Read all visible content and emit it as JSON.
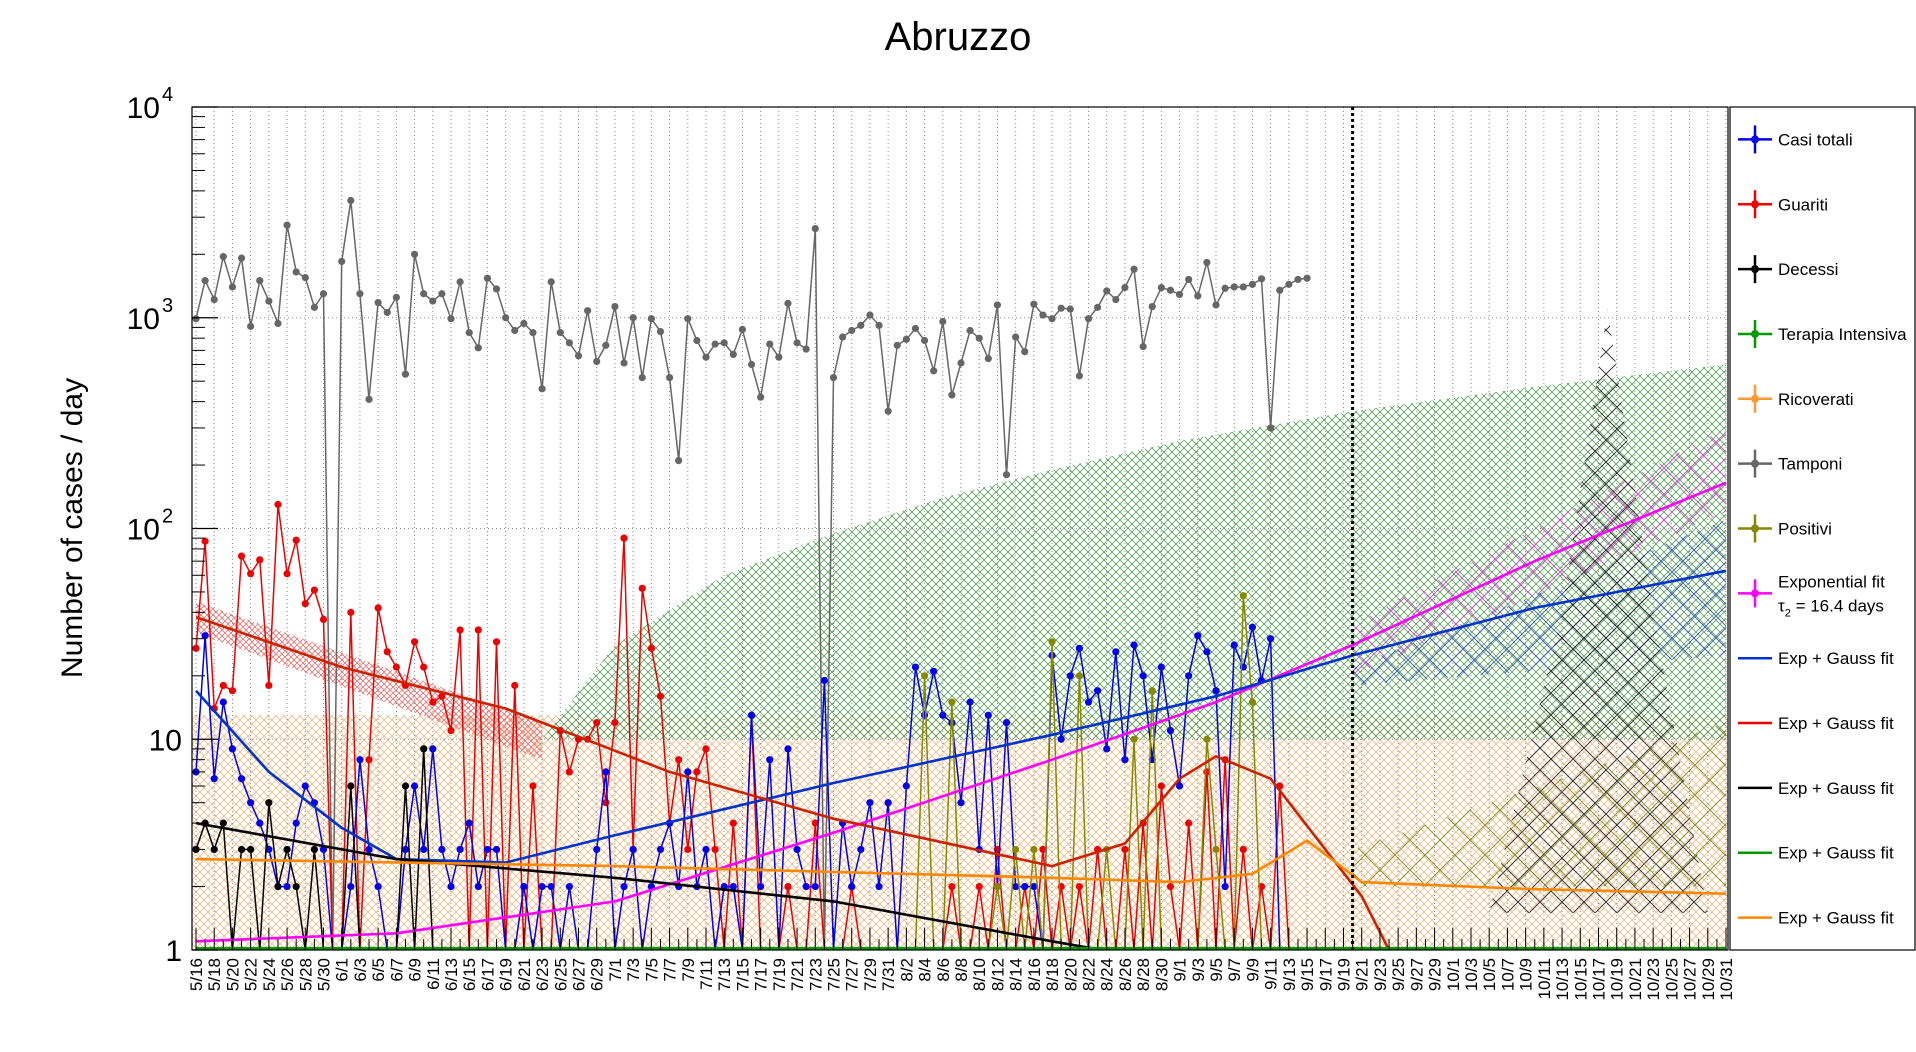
{
  "chart_data": {
    "type": "line",
    "title": "Abruzzo",
    "xlabel": "",
    "ylabel": "Number of cases / day",
    "y_scale": "log",
    "ylim": [
      1,
      10000
    ],
    "y_tick_labels": [
      {
        "value": 1,
        "base": "1",
        "exp": ""
      },
      {
        "value": 10,
        "base": "10",
        "exp": ""
      },
      {
        "value": 100,
        "base": "10",
        "exp": "2"
      },
      {
        "value": 1000,
        "base": "10",
        "exp": "3"
      },
      {
        "value": 10000,
        "base": "10",
        "exp": "4"
      }
    ],
    "x_tick_labels": [
      "5/16",
      "5/18",
      "5/20",
      "5/22",
      "5/24",
      "5/26",
      "5/28",
      "5/30",
      "6/1",
      "6/3",
      "6/5",
      "6/7",
      "6/9",
      "6/11",
      "6/13",
      "6/15",
      "6/17",
      "6/19",
      "6/21",
      "6/23",
      "6/25",
      "6/27",
      "6/29",
      "7/1",
      "7/3",
      "7/5",
      "7/7",
      "7/9",
      "7/11",
      "7/13",
      "7/15",
      "7/17",
      "7/19",
      "7/21",
      "7/23",
      "7/25",
      "7/27",
      "7/29",
      "7/31",
      "8/2",
      "8/4",
      "8/6",
      "8/8",
      "8/10",
      "8/12",
      "8/14",
      "8/16",
      "8/18",
      "8/20",
      "8/22",
      "8/24",
      "8/26",
      "8/28",
      "8/30",
      "9/1",
      "9/3",
      "9/5",
      "9/7",
      "9/9",
      "9/11",
      "9/13",
      "9/15",
      "9/17",
      "9/19",
      "9/21",
      "9/23",
      "9/25",
      "9/27",
      "9/29",
      "10/1",
      "10/3",
      "10/5",
      "10/7",
      "10/9",
      "10/11",
      "10/13",
      "10/15",
      "10/17",
      "10/19",
      "10/21",
      "10/23",
      "10/25",
      "10/27",
      "10/29",
      "10/31"
    ],
    "grid": true,
    "legend_position": "right",
    "vertical_marker": "9/20",
    "colors": {
      "casi_totali": "#0000ee",
      "guariti": "#ee0000",
      "decessi": "#000000",
      "terapia": "#009900",
      "ricoverati": "#ff9933",
      "tamponi": "#666666",
      "positivi": "#888800",
      "exp_fit": "#ff00ff"
    },
    "series": [
      {
        "name": "Tamponi",
        "color": "#666666",
        "values": [
          990,
          1500,
          1220,
          1950,
          1400,
          1920,
          910,
          1500,
          1200,
          940,
          2750,
          1650,
          1550,
          1120,
          1300,
          1,
          1850,
          3600,
          1300,
          410,
          1180,
          1060,
          1250,
          540,
          2000,
          1300,
          1200,
          1300,
          990,
          1480,
          850,
          720,
          1540,
          1370,
          1000,
          870,
          940,
          850,
          460,
          1480,
          850,
          760,
          660,
          1080,
          620,
          740,
          1130,
          610,
          1000,
          520,
          990,
          860,
          520,
          210,
          990,
          780,
          650,
          750,
          760,
          670,
          880,
          600,
          420,
          750,
          650,
          1170,
          760,
          710,
          2650,
          1,
          520,
          810,
          870,
          920,
          1030,
          920,
          360,
          740,
          790,
          890,
          780,
          560,
          960,
          430,
          610,
          870,
          800,
          640,
          1150,
          180,
          810,
          690,
          1160,
          1030,
          990,
          1110,
          1100,
          530,
          990,
          1120,
          1340,
          1220,
          1390,
          1700,
          730,
          1130,
          1390,
          1350,
          1290,
          1520,
          1270,
          1830,
          1150,
          1380,
          1400,
          1400,
          1440,
          1530,
          300,
          1350,
          1440,
          1520,
          1540
        ]
      },
      {
        "name": "Guariti",
        "color": "#ee0000",
        "values": [
          27,
          87,
          14,
          18,
          17,
          74,
          61,
          71,
          18,
          130,
          61,
          88,
          44,
          51,
          37,
          1,
          1,
          40,
          1,
          8,
          42,
          26,
          22,
          18,
          29,
          22,
          15,
          16,
          11,
          33,
          1,
          33,
          1,
          29,
          1,
          18,
          1,
          6,
          1,
          1,
          11,
          7,
          10,
          10,
          12,
          5,
          12,
          90,
          3,
          52,
          27,
          16,
          4,
          8,
          3,
          7,
          9,
          3,
          1,
          4,
          1,
          13,
          1,
          1,
          1,
          2,
          1,
          1,
          4,
          1,
          1,
          1,
          2,
          1,
          1,
          1,
          1,
          1,
          1,
          1,
          1,
          1,
          1,
          2,
          1,
          1,
          2,
          1,
          3,
          1,
          1,
          2,
          1,
          3,
          1,
          2,
          1,
          2,
          1,
          3,
          1,
          1,
          3,
          1,
          4,
          1,
          6,
          2,
          1,
          4,
          1,
          7,
          1,
          8,
          1,
          3,
          1,
          2,
          1,
          6,
          1
        ]
      },
      {
        "name": "Casi totali",
        "color": "#0000ee",
        "values": [
          7,
          31,
          6.5,
          15,
          9,
          6.5,
          5,
          4,
          3,
          2,
          2,
          4,
          6,
          5,
          3,
          1,
          1,
          2,
          8,
          3,
          2,
          1,
          1,
          3,
          6,
          3,
          9,
          3,
          2,
          3,
          4,
          2,
          3,
          3,
          1,
          1,
          2,
          1,
          2,
          2,
          1,
          2,
          1,
          1,
          3,
          7,
          1,
          2,
          3,
          1,
          2,
          3,
          4,
          2,
          7,
          2,
          3,
          1,
          2,
          2,
          1,
          13,
          2,
          8,
          1,
          9,
          3,
          2,
          2,
          19,
          1,
          4,
          2,
          3,
          5,
          2,
          5,
          1,
          6,
          22,
          13,
          21,
          13,
          12,
          5,
          15,
          3,
          13,
          2,
          12,
          2,
          2,
          2,
          1,
          25,
          10,
          20,
          27,
          15,
          17,
          9,
          26,
          8,
          28,
          20,
          8,
          22,
          11,
          6,
          20,
          31,
          26,
          17,
          2,
          28,
          22,
          34,
          19,
          30,
          1
        ]
      },
      {
        "name": "Decessi",
        "color": "#000000",
        "values": [
          3,
          4,
          3,
          4,
          1,
          3,
          3,
          1,
          5,
          2,
          3,
          2,
          1,
          3,
          1,
          1,
          1,
          6,
          1,
          1,
          1,
          1,
          1,
          6,
          1,
          9,
          1,
          1,
          1,
          1,
          1,
          1,
          1,
          1,
          1,
          1,
          1,
          1,
          1,
          1,
          1,
          1,
          1,
          1,
          1,
          1,
          1,
          1,
          1,
          1,
          1,
          1,
          1,
          1,
          1,
          1,
          1,
          1,
          1,
          1,
          1,
          1,
          1,
          1,
          1,
          1,
          1,
          1,
          1,
          1,
          1,
          1,
          1,
          1,
          1,
          1,
          1,
          1,
          1,
          1,
          1,
          1,
          1,
          1,
          1,
          1,
          1,
          1,
          1,
          1,
          1,
          1,
          1,
          1,
          1,
          1,
          1,
          1,
          1,
          1,
          1,
          1,
          1,
          1,
          1,
          1,
          1,
          1,
          1,
          1,
          1,
          1,
          1,
          1,
          1,
          1,
          1,
          1,
          1,
          1,
          1
        ]
      },
      {
        "name": "Positivi",
        "color": "#888800",
        "values": [
          1,
          1,
          1,
          1,
          1,
          1,
          1,
          1,
          1,
          1,
          1,
          1,
          1,
          1,
          1,
          1,
          1,
          1,
          1,
          1,
          1,
          1,
          1,
          1,
          1,
          1,
          1,
          1,
          1,
          1,
          1,
          1,
          1,
          1,
          1,
          1,
          1,
          1,
          1,
          1,
          1,
          1,
          1,
          1,
          1,
          1,
          1,
          1,
          1,
          1,
          1,
          1,
          1,
          1,
          1,
          1,
          1,
          1,
          1,
          1,
          1,
          1,
          1,
          1,
          1,
          1,
          1,
          1,
          1,
          1,
          1,
          1,
          1,
          1,
          1,
          1,
          1,
          1,
          1,
          1,
          20,
          1,
          1,
          15,
          1,
          1,
          1,
          1,
          2,
          1,
          3,
          1,
          3,
          1,
          29,
          1,
          1,
          20,
          1,
          1,
          3,
          1,
          1,
          10,
          1,
          17,
          1,
          1,
          1,
          1,
          1,
          10,
          3,
          1,
          1,
          48,
          15,
          1,
          1,
          1,
          1
        ]
      },
      {
        "name": "Ricoverati",
        "color": "#ff9933",
        "values": [
          1,
          1,
          1,
          1,
          1,
          1,
          1,
          1,
          1,
          1,
          1,
          1,
          1,
          1,
          1,
          1,
          1,
          1,
          1,
          1,
          1,
          1,
          1,
          1,
          1,
          1,
          1,
          1,
          1,
          1,
          1,
          1,
          1,
          1,
          1,
          1,
          1,
          1,
          1,
          1,
          1,
          1,
          1,
          1,
          1,
          1,
          1,
          1,
          1,
          1,
          1,
          1,
          1,
          1,
          1,
          1,
          1,
          1,
          1,
          1,
          1,
          1,
          1,
          1,
          1,
          1,
          1,
          1,
          1,
          1,
          1,
          1,
          1,
          1,
          1,
          1,
          1,
          1,
          1,
          1,
          1,
          1,
          1,
          1,
          1,
          1,
          1,
          1,
          1,
          1,
          1,
          1,
          1,
          1,
          1,
          1,
          1,
          1,
          1,
          1,
          1,
          1,
          1,
          1,
          1,
          1,
          1,
          1,
          1,
          1,
          1,
          1,
          1,
          1,
          1,
          1,
          1,
          1,
          1,
          1,
          1
        ]
      },
      {
        "name": "Terapia Intensiva",
        "color": "#009900",
        "values": [
          1,
          1,
          1,
          1,
          1,
          1,
          1,
          1,
          1,
          1,
          1,
          1,
          1,
          1,
          1,
          1,
          1,
          1,
          1,
          1,
          1,
          1,
          1,
          1,
          1,
          1,
          1,
          1,
          1,
          1,
          1,
          1,
          1,
          1,
          1,
          1,
          1,
          1,
          1,
          1,
          1,
          1,
          1,
          1,
          1,
          1,
          1,
          1,
          1,
          1,
          1,
          1,
          1,
          1,
          1,
          1,
          1,
          1,
          1,
          1,
          1,
          1,
          1,
          1,
          1,
          1,
          1,
          1,
          1,
          1,
          1,
          1,
          1,
          1,
          1,
          1,
          1,
          1,
          1,
          1,
          1,
          1,
          1,
          1,
          1,
          1,
          1,
          1,
          1,
          1,
          1,
          1,
          1,
          1,
          1,
          1,
          1,
          1,
          1,
          1,
          1,
          1,
          1,
          1,
          1,
          1,
          1,
          1,
          1,
          1,
          1,
          1,
          1,
          1,
          1,
          1,
          1,
          1,
          1,
          1,
          1
        ]
      }
    ],
    "fit_curves": [
      {
        "name": "Exponential fit",
        "color": "#ff00ff",
        "points": [
          [
            "5/16",
            1.1
          ],
          [
            "6/7",
            1.2
          ],
          [
            "7/1",
            1.7
          ],
          [
            "7/25",
            3.6
          ],
          [
            "8/18",
            8
          ],
          [
            "9/5",
            15
          ],
          [
            "9/20",
            28
          ],
          [
            "10/10",
            70
          ],
          [
            "10/31",
            165
          ]
        ]
      },
      {
        "name": "Exp + Gauss fit (Casi totali)",
        "color": "#0033cc",
        "points": [
          [
            "5/16",
            17
          ],
          [
            "5/24",
            7
          ],
          [
            "6/1",
            3.8
          ],
          [
            "6/7",
            2.7
          ],
          [
            "6/19",
            2.6
          ],
          [
            "7/1",
            3.5
          ],
          [
            "7/25",
            6.2
          ],
          [
            "8/18",
            10.5
          ],
          [
            "9/5",
            16
          ],
          [
            "9/20",
            25
          ],
          [
            "10/10",
            42
          ],
          [
            "10/31",
            63
          ]
        ]
      },
      {
        "name": "Exp + Gauss fit (Guariti)",
        "color": "#cc2200",
        "points": [
          [
            "5/16",
            38
          ],
          [
            "6/1",
            22
          ],
          [
            "6/19",
            14
          ],
          [
            "7/7",
            7
          ],
          [
            "7/25",
            4.2
          ],
          [
            "8/18",
            2.5
          ],
          [
            "8/26",
            3.2
          ],
          [
            "9/1",
            6.5
          ],
          [
            "9/5",
            8.3
          ],
          [
            "9/11",
            6.5
          ],
          [
            "9/17",
            3
          ],
          [
            "9/21",
            1.8
          ],
          [
            "9/24",
            1
          ]
        ]
      },
      {
        "name": "Exp + Gauss fit (Decessi)",
        "color": "#000000",
        "points": [
          [
            "5/16",
            4
          ],
          [
            "6/7",
            2.7
          ],
          [
            "7/1",
            2.2
          ],
          [
            "7/25",
            1.7
          ],
          [
            "8/18",
            1.1
          ],
          [
            "8/24",
            0.99
          ]
        ]
      },
      {
        "name": "Exp + Gauss fit (Terapia)",
        "color": "#009900",
        "points": [
          [
            "5/16",
            1.02
          ],
          [
            "10/31",
            1.02
          ]
        ]
      },
      {
        "name": "Exp + Gauss fit (Ricoverati)",
        "color": "#ff8800",
        "points": [
          [
            "5/16",
            2.7
          ],
          [
            "7/1",
            2.5
          ],
          [
            "8/18",
            2.2
          ],
          [
            "9/1",
            2.1
          ],
          [
            "9/9",
            2.3
          ],
          [
            "9/15",
            3.3
          ],
          [
            "9/21",
            2.1
          ],
          [
            "10/9",
            1.95
          ],
          [
            "10/31",
            1.85
          ]
        ]
      }
    ]
  },
  "legend": {
    "items": [
      {
        "label": "Casi totali",
        "color": "#0000ee",
        "marker": true
      },
      {
        "label": "Guariti",
        "color": "#ee0000",
        "marker": true
      },
      {
        "label": "Decessi",
        "color": "#000000",
        "marker": true
      },
      {
        "label": "Terapia Intensiva",
        "color": "#009900",
        "marker": true
      },
      {
        "label": "Ricoverati",
        "color": "#ff9933",
        "marker": true
      },
      {
        "label": "Tamponi",
        "color": "#666666",
        "marker": true
      },
      {
        "label": "Positivi",
        "color": "#888800",
        "marker": true
      },
      {
        "label": "Exponential fit",
        "label2": "= 16.4 days",
        "label2_prefix": "τ",
        "label2_sub": "2",
        "color": "#ff00ff",
        "marker": true
      },
      {
        "label": "Exp + Gauss fit",
        "color": "#0033cc",
        "marker": false
      },
      {
        "label": "Exp + Gauss fit",
        "color": "#ee0000",
        "marker": false
      },
      {
        "label": "Exp + Gauss fit",
        "color": "#000000",
        "marker": false
      },
      {
        "label": "Exp + Gauss fit",
        "color": "#009900",
        "marker": false
      },
      {
        "label": "Exp + Gauss fit",
        "color": "#ff8800",
        "marker": false
      }
    ]
  }
}
